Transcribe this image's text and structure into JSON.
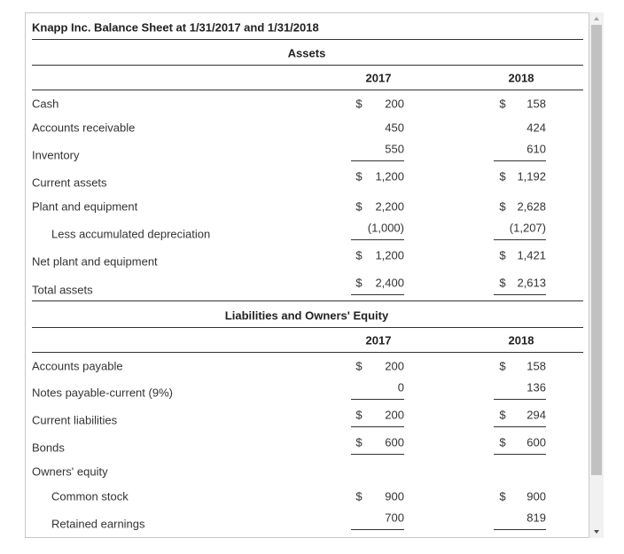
{
  "title": "Knapp Inc. Balance Sheet at 1/31/2017 and 1/31/2018",
  "sections": [
    {
      "heading": "Assets",
      "columns": [
        "2017",
        "2018"
      ],
      "rows": [
        {
          "label": "Cash",
          "cells": [
            {
              "currency": "$",
              "amount": "200"
            },
            {
              "currency": "$",
              "amount": "158"
            }
          ]
        },
        {
          "label": "Accounts receivable",
          "cells": [
            {
              "amount": "450"
            },
            {
              "amount": "424"
            }
          ]
        },
        {
          "label": "Inventory",
          "cells": [
            {
              "amount": "550",
              "underline": true
            },
            {
              "amount": "610",
              "underline": true
            }
          ]
        },
        {
          "label": "Current assets",
          "cells": [
            {
              "currency": "$",
              "amount": "1,200"
            },
            {
              "currency": "$",
              "amount": "1,192"
            }
          ]
        },
        {
          "label": "Plant and equipment",
          "cells": [
            {
              "currency": "$",
              "amount": "2,200"
            },
            {
              "currency": "$",
              "amount": "2,628"
            }
          ]
        },
        {
          "label": "Less accumulated depreciation",
          "indent": true,
          "cells": [
            {
              "amount": "(1,000)",
              "underline": true
            },
            {
              "amount": "(1,207)",
              "underline": true
            }
          ]
        },
        {
          "label": "Net plant and equipment",
          "cells": [
            {
              "currency": "$",
              "amount": "1,200"
            },
            {
              "currency": "$",
              "amount": "1,421"
            }
          ]
        },
        {
          "label": "Total assets",
          "cells": [
            {
              "currency": "$",
              "amount": "2,400",
              "underline": true
            },
            {
              "currency": "$",
              "amount": "2,613",
              "underline": true
            }
          ]
        }
      ]
    },
    {
      "heading": "Liabilities and Owners' Equity",
      "columns": [
        "2017",
        "2018"
      ],
      "rows": [
        {
          "label": "Accounts payable",
          "cells": [
            {
              "currency": "$",
              "amount": "200"
            },
            {
              "currency": "$",
              "amount": "158"
            }
          ]
        },
        {
          "label": "Notes payable-current (9%)",
          "cells": [
            {
              "amount": "0",
              "underline": true
            },
            {
              "amount": "136",
              "underline": true
            }
          ]
        },
        {
          "label": "Current liabilities",
          "cells": [
            {
              "currency": "$",
              "amount": "200",
              "underline": true
            },
            {
              "currency": "$",
              "amount": "294",
              "underline": true
            }
          ]
        },
        {
          "label": "Bonds",
          "cells": [
            {
              "currency": "$",
              "amount": "600",
              "underline": true
            },
            {
              "currency": "$",
              "amount": "600",
              "underline": true
            }
          ]
        },
        {
          "label": "Owners' equity"
        },
        {
          "label": "Common stock",
          "indent": true,
          "cells": [
            {
              "currency": "$",
              "amount": "900"
            },
            {
              "currency": "$",
              "amount": "900"
            }
          ]
        },
        {
          "label": "Retained earnings",
          "indent": true,
          "cells": [
            {
              "amount": "700",
              "underline": true
            },
            {
              "amount": "819",
              "underline": true
            }
          ]
        }
      ]
    }
  ]
}
